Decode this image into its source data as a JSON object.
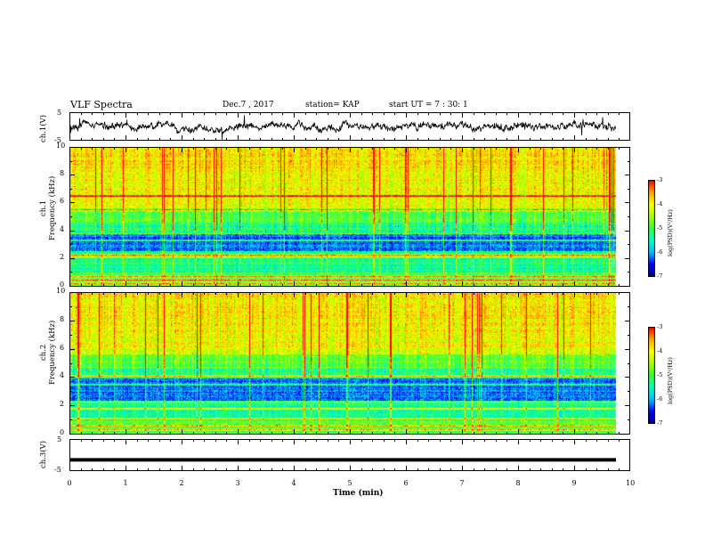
{
  "header": {
    "title": "VLF Spectra",
    "date": "Dec.7 , 2017",
    "station": "station= KAP",
    "start": "start UT = 7 : 30: 1"
  },
  "colors": {
    "waveform": "#000000",
    "colormap": [
      "#00008b",
      "#0000ff",
      "#00bfff",
      "#00ffc8",
      "#33ff33",
      "#a8ff00",
      "#ffff00",
      "#ffa500",
      "#ff0000",
      "#ffffff"
    ]
  },
  "chart_data": [
    {
      "type": "line",
      "panel": "ch1-waveform",
      "ylabel": "ch.1(V)",
      "ylim": [
        -5,
        5
      ],
      "yticks": [
        "5",
        "-5"
      ],
      "xlim": [
        0,
        10
      ],
      "note": "noisy waveform centered near 0 V with bursts up to about ±4 V"
    },
    {
      "type": "heatmap",
      "panel": "ch1-spectrogram",
      "ylabel": "ch.1\nFrequency (kHz)",
      "ylim": [
        0,
        10
      ],
      "yticks": [
        "0",
        "2",
        "4",
        "6",
        "8",
        "10"
      ],
      "xlim": [
        0,
        10
      ],
      "colorbar": {
        "label": "log(PSD)(V²/Hz)",
        "ticks": [
          "-3",
          "-4",
          "-5",
          "-6",
          "-7"
        ],
        "range": [
          -7,
          -3
        ]
      },
      "bands_khz": [
        0.2,
        0.45,
        0.7,
        2.1,
        2.25,
        3.3,
        3.8,
        5.5,
        6.5
      ]
    },
    {
      "type": "heatmap",
      "panel": "ch2-spectrogram",
      "ylabel": "ch.2\nFrequency (kHz)",
      "ylim": [
        0,
        10
      ],
      "yticks": [
        "0",
        "2",
        "4",
        "6",
        "8",
        "10"
      ],
      "xlim": [
        0,
        10
      ],
      "colorbar": {
        "label": "log(PSD)(V²/Hz)",
        "ticks": [
          "-3",
          "-4",
          "-5",
          "-6",
          "-7"
        ],
        "range": [
          -7,
          -3
        ]
      },
      "bands_khz": [
        0.3,
        0.6,
        1.1,
        1.8,
        2.3,
        3.5,
        4.1
      ]
    },
    {
      "type": "line",
      "panel": "ch3-waveform",
      "ylabel": "ch.3(V)",
      "ylim": [
        -5,
        5
      ],
      "yticks": [
        "5",
        "-5"
      ],
      "xlim": [
        0,
        10
      ],
      "xticks": [
        "0",
        "1",
        "2",
        "3",
        "4",
        "5",
        "6",
        "7",
        "8",
        "9",
        "10"
      ],
      "xlabel": "Time (min)",
      "level_v": -1.5
    }
  ]
}
